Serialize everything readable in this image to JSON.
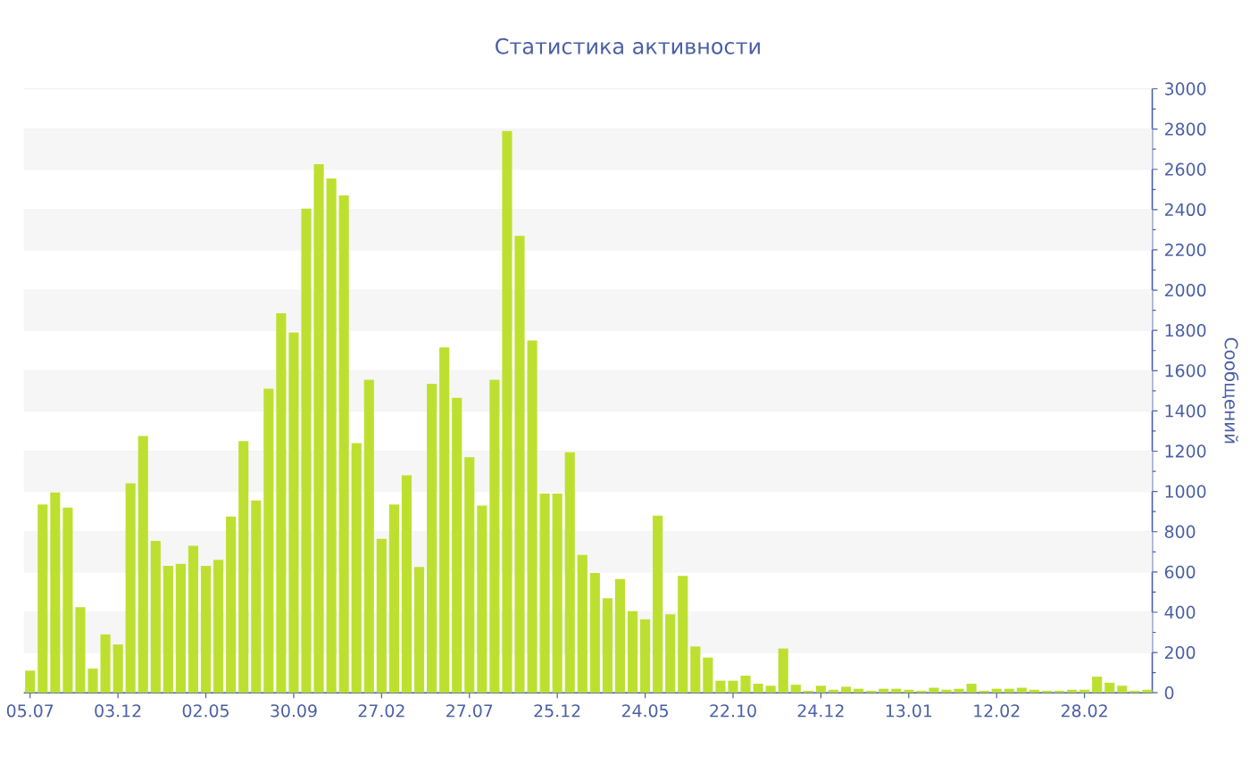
{
  "chart_data": {
    "type": "bar",
    "title": "Статистика активности",
    "ylabel": "Сообщений",
    "categories": [
      "05.07",
      null,
      null,
      null,
      null,
      null,
      null,
      "03.12",
      null,
      null,
      null,
      null,
      null,
      null,
      "02.05",
      null,
      null,
      null,
      null,
      null,
      null,
      "30.09",
      null,
      null,
      null,
      null,
      null,
      null,
      "27.02",
      null,
      null,
      null,
      null,
      null,
      null,
      "27.07",
      null,
      null,
      null,
      null,
      null,
      null,
      "25.12",
      null,
      null,
      null,
      null,
      null,
      null,
      "24.05",
      null,
      null,
      null,
      null,
      null,
      null,
      "22.10",
      null,
      null,
      null,
      null,
      null,
      null,
      "24.12",
      null,
      null,
      null,
      null,
      null,
      null,
      "13.01",
      null,
      null,
      null,
      null,
      null,
      null,
      "12.02",
      null,
      null,
      null,
      null,
      null,
      null,
      "28.02",
      null,
      null,
      null,
      null,
      null
    ],
    "values": [
      110,
      935,
      995,
      920,
      425,
      120,
      290,
      240,
      1040,
      1275,
      755,
      630,
      640,
      730,
      630,
      660,
      875,
      1250,
      955,
      1510,
      1885,
      1790,
      2405,
      2625,
      2555,
      2470,
      1240,
      1555,
      765,
      935,
      1080,
      625,
      1535,
      1715,
      1465,
      1170,
      930,
      1555,
      2790,
      2270,
      1750,
      990,
      990,
      1195,
      685,
      595,
      470,
      565,
      405,
      365,
      880,
      390,
      580,
      230,
      175,
      60,
      60,
      85,
      45,
      35,
      220,
      40,
      10,
      35,
      15,
      30,
      20,
      10,
      20,
      20,
      15,
      10,
      25,
      15,
      20,
      45,
      10,
      20,
      20,
      25,
      15,
      10,
      10,
      15,
      15,
      80,
      50,
      35,
      10,
      15
    ],
    "color": "#bde030",
    "ylim": [
      0,
      3000
    ],
    "yticks": [
      0,
      200,
      400,
      600,
      800,
      1000,
      1200,
      1400,
      1600,
      1800,
      2000,
      2200,
      2400,
      2600,
      2800,
      3000
    ],
    "grid": "y"
  }
}
